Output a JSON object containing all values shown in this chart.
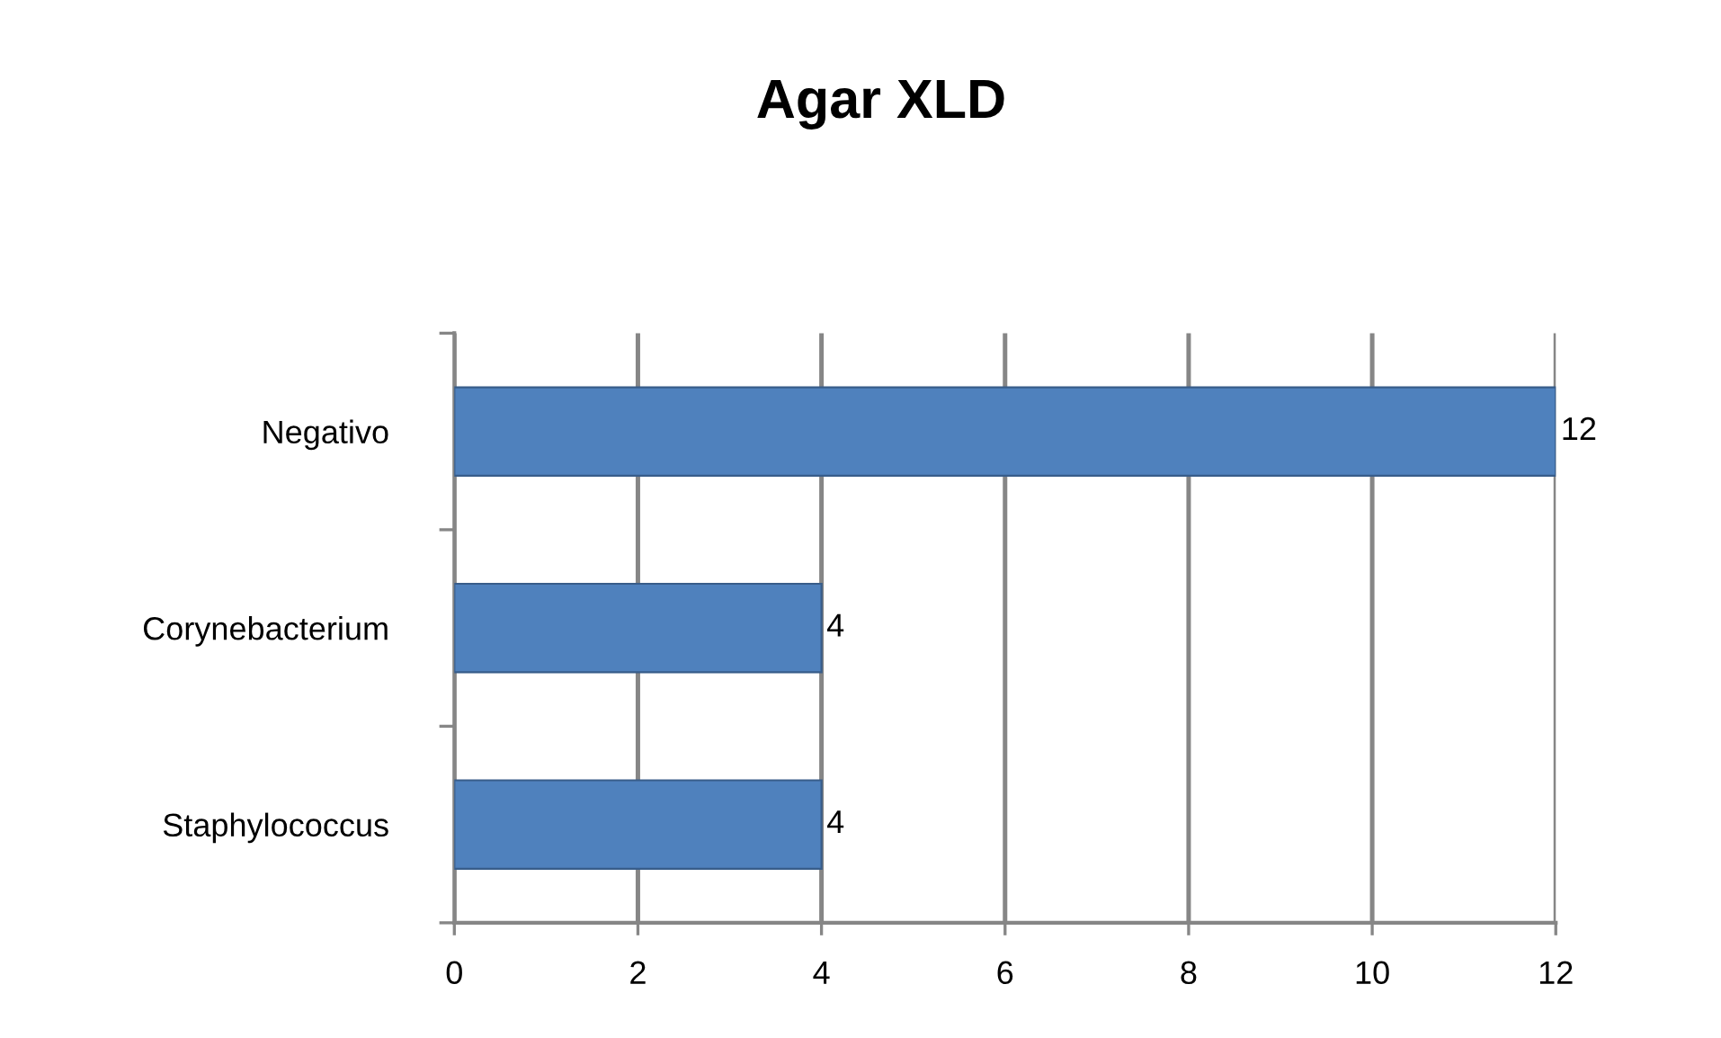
{
  "chart_data": {
    "type": "bar",
    "orientation": "horizontal",
    "title": "Agar XLD",
    "categories": [
      "Negativo",
      "Corynebacterium",
      "Staphylococcus"
    ],
    "values": [
      12,
      4,
      4
    ],
    "color": "#4f81bd",
    "xlim": [
      0,
      12
    ],
    "xticks": [
      0,
      2,
      4,
      6,
      8,
      10,
      12
    ],
    "grid": "x",
    "data_labels": true,
    "legend": false
  }
}
